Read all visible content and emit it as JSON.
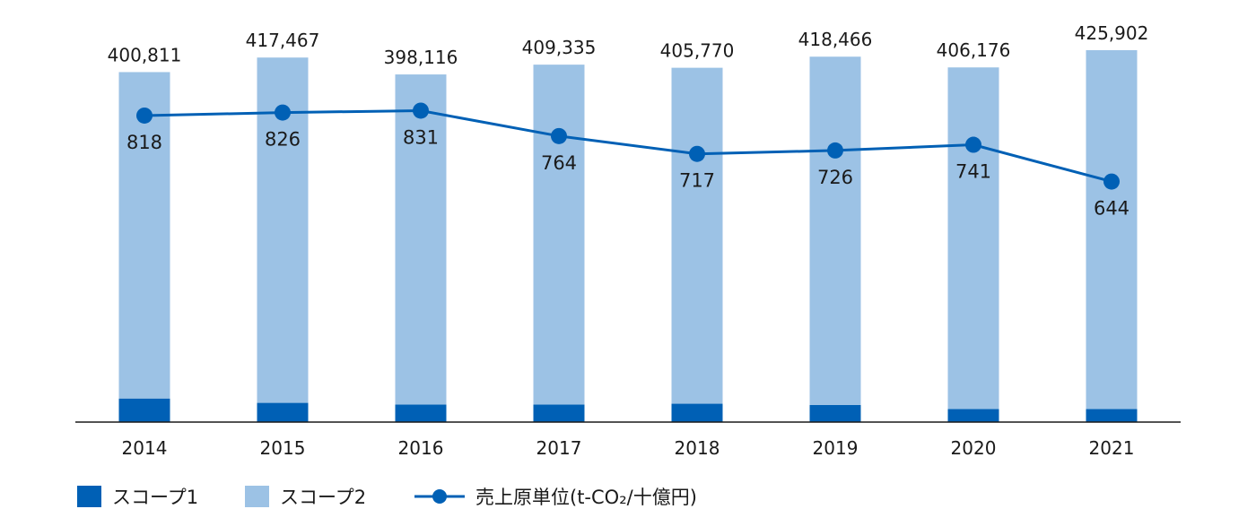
{
  "chart_data": {
    "type": "bar",
    "stacked": true,
    "categories": [
      "2014",
      "2015",
      "2016",
      "2017",
      "2018",
      "2019",
      "2020",
      "2021"
    ],
    "totals": [
      400811,
      417467,
      398116,
      409335,
      405770,
      418466,
      406176,
      425902
    ],
    "total_labels": [
      "400,811",
      "417,467",
      "398,116",
      "409,335",
      "405,770",
      "418,466",
      "406,176",
      "425,902"
    ],
    "series": [
      {
        "name": "スコープ1",
        "color": "#0060b5",
        "values": [
          27000,
          22000,
          20000,
          20000,
          21000,
          19500,
          15000,
          15000
        ]
      },
      {
        "name": "スコープ2",
        "color": "#9cc2e5",
        "values": [
          373811,
          395467,
          378116,
          389335,
          384770,
          398966,
          391176,
          410902
        ]
      }
    ],
    "line_series": {
      "name": "売上原単位(t-CO₂/十億円)",
      "color": "#0060b5",
      "values": [
        818,
        826,
        831,
        764,
        717,
        726,
        741,
        644
      ]
    },
    "ylim": [
      0,
      450000
    ],
    "grid": false,
    "legend": "bottom-left"
  }
}
